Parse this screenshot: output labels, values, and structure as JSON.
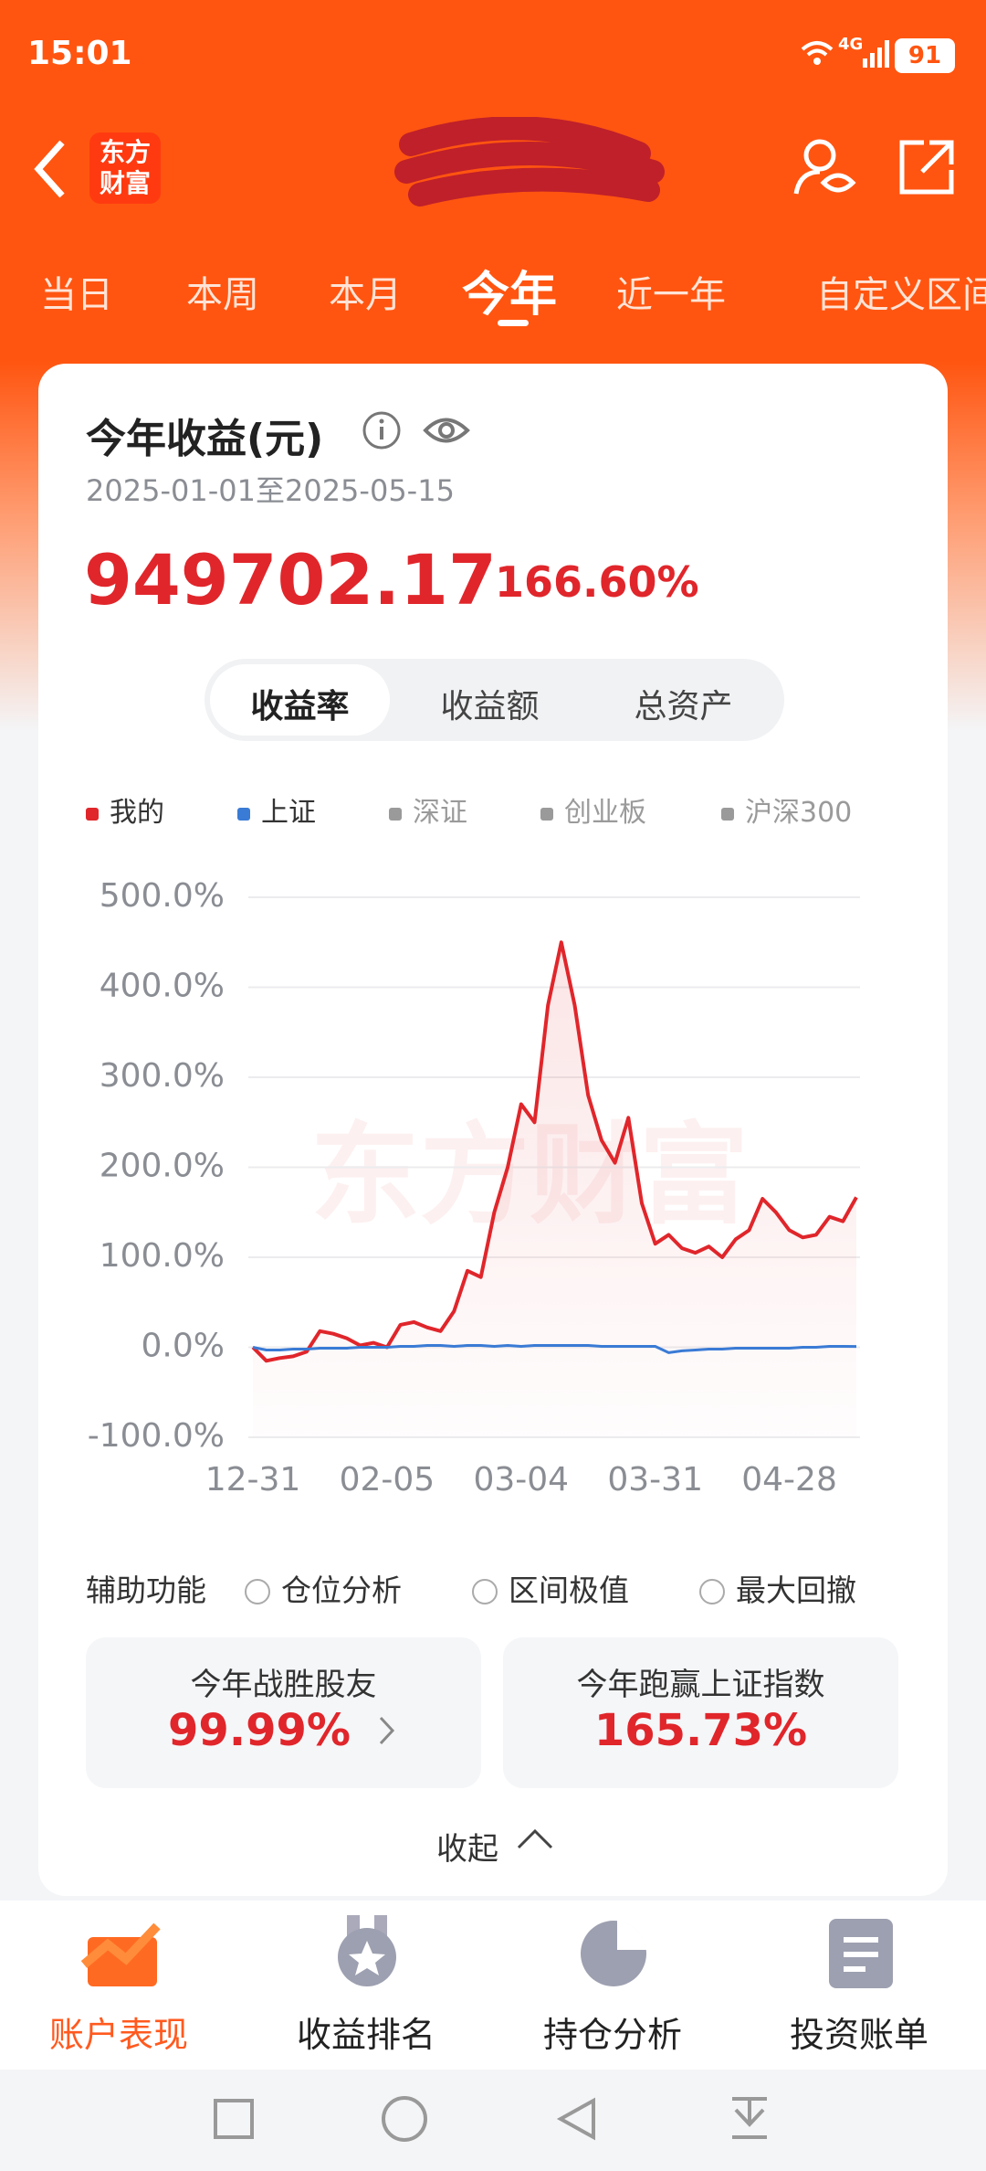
{
  "status_bar": {
    "time": "15:01",
    "network": "4G",
    "battery": "91"
  },
  "header": {
    "logo": [
      "东方",
      "财富"
    ]
  },
  "period_tabs": [
    "当日",
    "本周",
    "本月",
    "今年",
    "近一年",
    "自定义区间"
  ],
  "summary": {
    "title": "今年收益(元)",
    "date_range": "2025-01-01至2025-05-15",
    "amount": "949702.17",
    "rate": "166.60%"
  },
  "segments": [
    "收益率",
    "收益额",
    "总资产"
  ],
  "chart_data": {
    "type": "line",
    "watermark": "东方财富",
    "categories": [
      "12-31",
      null,
      null,
      null,
      null,
      null,
      null,
      null,
      null,
      null,
      "02-05",
      null,
      null,
      null,
      null,
      null,
      null,
      null,
      null,
      null,
      "03-04",
      null,
      null,
      null,
      null,
      null,
      null,
      null,
      null,
      null,
      "03-31",
      null,
      null,
      null,
      null,
      null,
      null,
      null,
      null,
      null,
      "04-28",
      null,
      null,
      null,
      null,
      null
    ],
    "series": [
      {
        "name": "我的",
        "color": "#e0262b",
        "values": [
          0,
          -15,
          -12,
          -10,
          -5,
          18,
          15,
          10,
          2,
          5,
          0,
          25,
          28,
          22,
          18,
          40,
          85,
          78,
          150,
          200,
          270,
          250,
          380,
          450,
          380,
          280,
          230,
          205,
          255,
          160,
          115,
          125,
          110,
          105,
          112,
          100,
          120,
          130,
          165,
          150,
          130,
          122,
          125,
          145,
          140,
          166.6
        ]
      },
      {
        "name": "上证",
        "color": "#3a7bd5",
        "values": [
          0,
          -3,
          -3,
          -2,
          -2,
          -1,
          -1,
          -1,
          0,
          0,
          0,
          1,
          1,
          2,
          2,
          1,
          2,
          2,
          1,
          2,
          1,
          2,
          2,
          2,
          2,
          2,
          1,
          1,
          1,
          1,
          1,
          -6,
          -4,
          -3,
          -2,
          -2,
          -1,
          -1,
          -1,
          -1,
          -1,
          0,
          0,
          1,
          1,
          0.9
        ]
      }
    ],
    "inactive_legend": [
      {
        "name": "深证",
        "color": "#9a9a9a"
      },
      {
        "name": "创业板",
        "color": "#9a9a9a"
      },
      {
        "name": "沪深300",
        "color": "#9a9a9a"
      }
    ],
    "ylim": [
      -100,
      500
    ],
    "yticks": [
      {
        "value": -100,
        "label": "-100.0%"
      },
      {
        "value": 0,
        "label": "0.0%"
      },
      {
        "value": 100,
        "label": "100.0%"
      },
      {
        "value": 200,
        "label": "200.0%"
      },
      {
        "value": 300,
        "label": "300.0%"
      },
      {
        "value": 400,
        "label": "400.0%"
      },
      {
        "value": 500,
        "label": "500.0%"
      }
    ],
    "grid": true
  },
  "tools": {
    "label": "辅助功能",
    "options": [
      "仓位分析",
      "区间极值",
      "最大回撤"
    ]
  },
  "stats": [
    {
      "label": "今年战胜股友",
      "value": "99.99%"
    },
    {
      "label": "今年跑赢上证指数",
      "value": "165.73%"
    }
  ],
  "collapse": "收起",
  "bottom_nav": [
    "账户表现",
    "收益排名",
    "持仓分析",
    "投资账单"
  ]
}
